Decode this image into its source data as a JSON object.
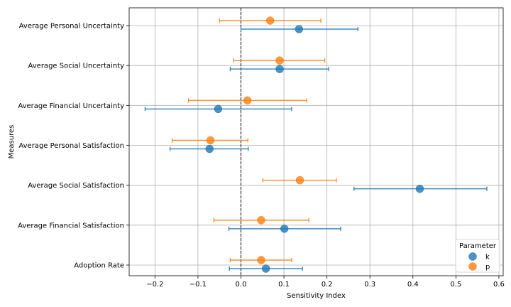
{
  "chart_data": {
    "type": "scatter",
    "xlabel": "Sensitivity Index",
    "ylabel": "Measures",
    "xlim": [
      -0.26,
      0.61
    ],
    "xticks": [
      -0.2,
      -0.1,
      0.0,
      0.1,
      0.2,
      0.3,
      0.4,
      0.5,
      0.6
    ],
    "xtick_labels": [
      "−0.2",
      "−0.1",
      "0.0",
      "0.1",
      "0.2",
      "0.3",
      "0.4",
      "0.5",
      "0.6"
    ],
    "categories": [
      "Average Personal Uncertainty",
      "Average Social Uncertainty",
      "Average Financial Uncertainty",
      "Average Personal Satisfaction",
      "Average Social Satisfaction",
      "Average Financial Satisfaction",
      "Adoption Rate"
    ],
    "grid": true,
    "reference_line": 0.0,
    "legend": {
      "title": "Parameter",
      "placement": "lower-right"
    },
    "series": [
      {
        "name": "k",
        "color": "#1f77b4",
        "values": [
          0.135,
          0.09,
          -0.053,
          -0.073,
          0.416,
          0.101,
          0.058
        ],
        "err_low": [
          0.0,
          -0.025,
          -0.223,
          -0.165,
          0.263,
          -0.028,
          -0.027
        ],
        "err_high": [
          0.272,
          0.204,
          0.118,
          0.017,
          0.572,
          0.232,
          0.143
        ]
      },
      {
        "name": "p",
        "color": "#ff7f0e",
        "values": [
          0.068,
          0.09,
          0.015,
          -0.071,
          0.137,
          0.047,
          0.047
        ],
        "err_low": [
          -0.05,
          -0.017,
          -0.122,
          -0.16,
          0.051,
          -0.063,
          -0.025
        ],
        "err_high": [
          0.186,
          0.195,
          0.153,
          0.016,
          0.222,
          0.158,
          0.118
        ]
      }
    ]
  }
}
